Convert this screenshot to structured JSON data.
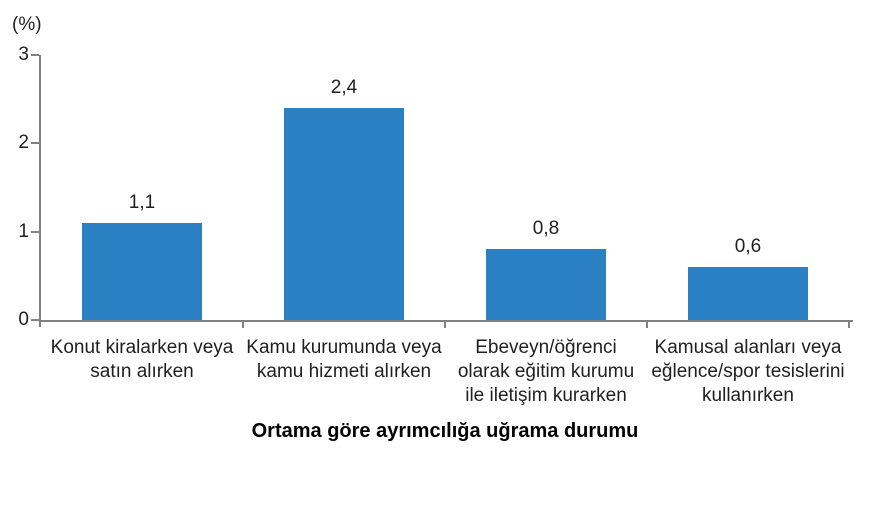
{
  "chart_data": {
    "type": "bar",
    "title": "",
    "xlabel": "Ortama göre ayrımcılığa uğrama durumu",
    "ylabel": "(%)",
    "ylim": [
      0,
      3
    ],
    "yticks": [
      0,
      1,
      2,
      3
    ],
    "grid": false,
    "legend": false,
    "bar_color": "#2a80c3",
    "axis_color": "#808080",
    "text_color": "#1f1f1f",
    "categories": [
      "Konut kiralarken veya\nsatın alırken",
      "Kamu kurumunda veya\nkamu hizmeti alırken",
      "Ebeveyn/öğrenci\nolarak eğitim kurumu\nile iletişim kurarken",
      "Kamusal alanları veya\neğlence/spor tesislerini\nkullanırken"
    ],
    "values": [
      1.1,
      2.4,
      0.8,
      0.6
    ],
    "value_labels": [
      "1,1",
      "2,4",
      "0,8",
      "0,6"
    ]
  }
}
